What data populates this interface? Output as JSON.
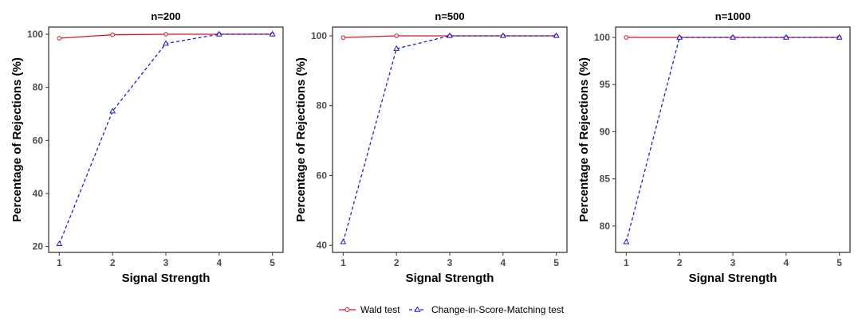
{
  "chart_data": [
    {
      "type": "line",
      "title": "n=200",
      "xlabel": "Signal Strength",
      "ylabel": "Percentage of Rejections (%)",
      "x": [
        1,
        2,
        3,
        4,
        5
      ],
      "xticks": [
        "1",
        "2",
        "3",
        "4",
        "5"
      ],
      "xlim": [
        0.8,
        5.2
      ],
      "ylim": [
        17.8,
        102.7
      ],
      "yticks": [
        20,
        40,
        60,
        80,
        100
      ],
      "series": [
        {
          "name": "Wald test",
          "values": [
            98.5,
            99.8,
            100,
            100,
            100
          ]
        },
        {
          "name": "Change-in-Score-Matching test",
          "values": [
            21,
            71,
            96.5,
            100,
            100
          ]
        }
      ]
    },
    {
      "type": "line",
      "title": "n=500",
      "xlabel": "Signal Strength",
      "ylabel": "Percentage of Rejections (%)",
      "x": [
        1,
        2,
        3,
        4,
        5
      ],
      "xticks": [
        "1",
        "2",
        "3",
        "4",
        "5"
      ],
      "xlim": [
        0.8,
        5.2
      ],
      "ylim": [
        38,
        102.5
      ],
      "yticks": [
        40,
        60,
        80,
        100
      ],
      "series": [
        {
          "name": "Wald test",
          "values": [
            99.5,
            100,
            100,
            100,
            100
          ]
        },
        {
          "name": "Change-in-Score-Matching test",
          "values": [
            41,
            96.3,
            100,
            100,
            100
          ]
        }
      ]
    },
    {
      "type": "line",
      "title": "n=1000",
      "xlabel": "Signal Strength",
      "ylabel": "Percentage of Rejections (%)",
      "x": [
        1,
        2,
        3,
        4,
        5
      ],
      "xticks": [
        "1",
        "2",
        "3",
        "4",
        "5"
      ],
      "xlim": [
        0.8,
        5.2
      ],
      "ylim": [
        77.2,
        101.1
      ],
      "yticks": [
        80,
        85,
        90,
        95,
        100
      ],
      "series": [
        {
          "name": "Wald test",
          "values": [
            100,
            100,
            100,
            100,
            100
          ]
        },
        {
          "name": "Change-in-Score-Matching test",
          "values": [
            78.3,
            100,
            100,
            100,
            100
          ]
        }
      ]
    }
  ],
  "legend": {
    "position": "bottom",
    "items": [
      {
        "label": "Wald test",
        "color": "#d7191c",
        "marker": "circle",
        "dash": "solid"
      },
      {
        "label": "Change-in-Score-Matching test",
        "color": "#1f1fd6",
        "marker": "triangle",
        "dash": "dashed"
      }
    ]
  }
}
